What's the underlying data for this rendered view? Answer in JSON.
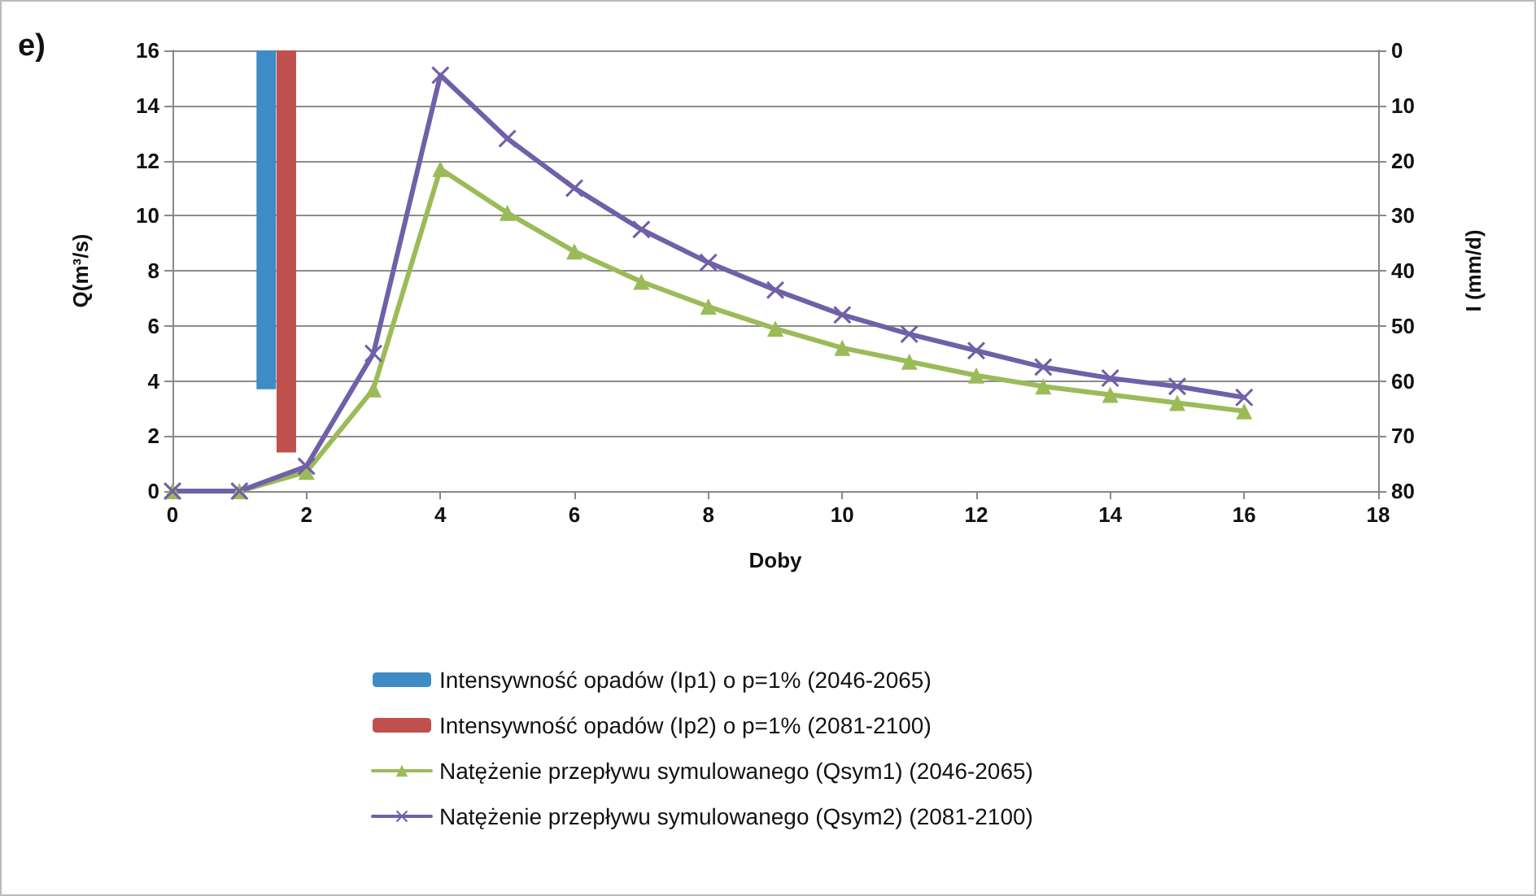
{
  "chart_data": {
    "type": "line",
    "xlabel": "Doby",
    "ylabel": "Q(m³/s)",
    "y2label": "I (mm/d)",
    "annotations": [
      "e)"
    ],
    "xlim": [
      0,
      18
    ],
    "xticks": [
      0,
      2,
      4,
      6,
      8,
      10,
      12,
      14,
      16,
      18
    ],
    "ylim": [
      0,
      16
    ],
    "yticks": [
      0,
      2,
      4,
      6,
      8,
      10,
      12,
      14,
      16
    ],
    "y2lim": [
      80,
      0
    ],
    "y2ticks": [
      0,
      10,
      20,
      30,
      40,
      50,
      60,
      70,
      80
    ],
    "grid": "y",
    "legend": "bottom",
    "series": [
      {
        "name": "Intensywność opadów (Ip1) o p=1% (2046-2065)",
        "type": "bar",
        "axis": "y2",
        "color": "#3e8bc6",
        "x": [
          1.4
        ],
        "values": [
          61.5
        ]
      },
      {
        "name": "Intensywność opadów (Ip2) o p=1% (2081-2100)",
        "type": "bar",
        "axis": "y2",
        "color": "#c0504d",
        "x": [
          1.7
        ],
        "values": [
          73
        ]
      },
      {
        "name": "Natężenie przepływu symulowanego (Qsym1) (2046-2065)",
        "marker": "triangle",
        "color": "#9bbb59",
        "x": [
          0,
          1,
          2,
          3,
          4,
          5,
          6,
          7,
          8,
          9,
          10,
          11,
          12,
          13,
          14,
          15,
          16
        ],
        "values": [
          0,
          0,
          0.7,
          3.7,
          11.7,
          10.1,
          8.7,
          7.6,
          6.7,
          5.9,
          5.2,
          4.7,
          4.2,
          3.8,
          3.5,
          3.2,
          2.9
        ]
      },
      {
        "name": "Natężenie przepływu symulowanego (Qsym2) (2081-2100)",
        "marker": "cross",
        "color": "#7060a8",
        "x": [
          0,
          1,
          2,
          3,
          4,
          5,
          6,
          7,
          8,
          9,
          10,
          11,
          12,
          13,
          14,
          15,
          16
        ],
        "values": [
          0,
          0,
          0.9,
          5.0,
          15.1,
          12.8,
          11.0,
          9.5,
          8.3,
          7.3,
          6.4,
          5.7,
          5.1,
          4.5,
          4.1,
          3.8,
          3.4
        ]
      }
    ]
  }
}
